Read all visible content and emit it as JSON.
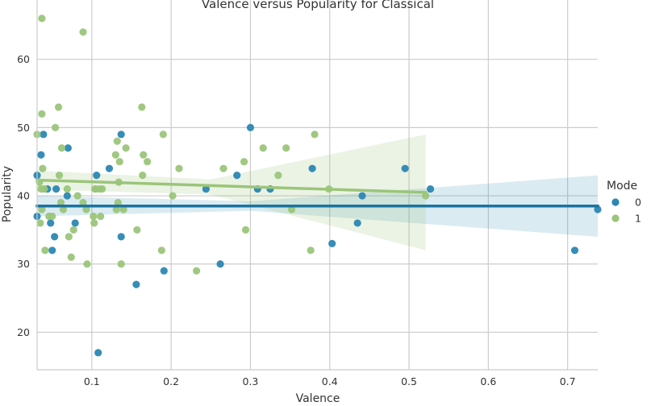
{
  "chart_data": {
    "type": "scatter",
    "title": "Valence versus Popularity for Classical",
    "xlabel": "Valence",
    "ylabel": "Popularity",
    "xlim": [
      0.031,
      0.738
    ],
    "ylim": [
      14.5,
      68.7
    ],
    "xticks": [
      "0.1",
      "0.2",
      "0.3",
      "0.4",
      "0.5",
      "0.6",
      "0.7"
    ],
    "yticks": [
      "20",
      "30",
      "40",
      "50",
      "60"
    ],
    "xtick_values": [
      0.1,
      0.2,
      0.3,
      0.4,
      0.5,
      0.6,
      0.7
    ],
    "ytick_values": [
      20,
      30,
      40,
      50,
      60
    ],
    "grid": true,
    "legend": {
      "title": "Mode",
      "placement": "right"
    },
    "series": [
      {
        "name": "0",
        "color": "#2b87b3",
        "points": [
          [
            0.031,
            43
          ],
          [
            0.031,
            37
          ],
          [
            0.036,
            46
          ],
          [
            0.039,
            49
          ],
          [
            0.044,
            41
          ],
          [
            0.048,
            36
          ],
          [
            0.05,
            32
          ],
          [
            0.053,
            34
          ],
          [
            0.055,
            41
          ],
          [
            0.069,
            40
          ],
          [
            0.07,
            47
          ],
          [
            0.079,
            36
          ],
          [
            0.106,
            43
          ],
          [
            0.108,
            17
          ],
          [
            0.122,
            44
          ],
          [
            0.137,
            49
          ],
          [
            0.137,
            34
          ],
          [
            0.156,
            27
          ],
          [
            0.191,
            29
          ],
          [
            0.244,
            41
          ],
          [
            0.262,
            30
          ],
          [
            0.283,
            43
          ],
          [
            0.3,
            50
          ],
          [
            0.309,
            41
          ],
          [
            0.325,
            41
          ],
          [
            0.378,
            44
          ],
          [
            0.403,
            33
          ],
          [
            0.435,
            36
          ],
          [
            0.441,
            40
          ],
          [
            0.495,
            44
          ],
          [
            0.527,
            41
          ],
          [
            0.709,
            32
          ],
          [
            0.738,
            38
          ]
        ],
        "fit": {
          "x": [
            0.031,
            0.738
          ],
          "y": [
            38.5,
            38.5
          ]
        },
        "ci": {
          "x": [
            0.031,
            0.3,
            0.738
          ],
          "lower": [
            37.0,
            37.8,
            34.0
          ],
          "upper": [
            40.0,
            39.2,
            43.0
          ]
        }
      },
      {
        "name": "1",
        "color": "#9bc57a",
        "points": [
          [
            0.031,
            49
          ],
          [
            0.034,
            42
          ],
          [
            0.035,
            36
          ],
          [
            0.036,
            41
          ],
          [
            0.037,
            38
          ],
          [
            0.037,
            66
          ],
          [
            0.037,
            52
          ],
          [
            0.038,
            44
          ],
          [
            0.04,
            41
          ],
          [
            0.041,
            32
          ],
          [
            0.046,
            37
          ],
          [
            0.05,
            37
          ],
          [
            0.054,
            50
          ],
          [
            0.058,
            53
          ],
          [
            0.059,
            43
          ],
          [
            0.061,
            39
          ],
          [
            0.062,
            47
          ],
          [
            0.064,
            38
          ],
          [
            0.069,
            41
          ],
          [
            0.071,
            34
          ],
          [
            0.074,
            31
          ],
          [
            0.077,
            35
          ],
          [
            0.082,
            40
          ],
          [
            0.089,
            64
          ],
          [
            0.089,
            39
          ],
          [
            0.093,
            38
          ],
          [
            0.094,
            30
          ],
          [
            0.102,
            37
          ],
          [
            0.103,
            36
          ],
          [
            0.104,
            41
          ],
          [
            0.105,
            41
          ],
          [
            0.11,
            41
          ],
          [
            0.111,
            37
          ],
          [
            0.113,
            41
          ],
          [
            0.13,
            46
          ],
          [
            0.131,
            38
          ],
          [
            0.132,
            48
          ],
          [
            0.133,
            39
          ],
          [
            0.134,
            42
          ],
          [
            0.135,
            45
          ],
          [
            0.137,
            30
          ],
          [
            0.14,
            38
          ],
          [
            0.143,
            47
          ],
          [
            0.157,
            35
          ],
          [
            0.163,
            53
          ],
          [
            0.164,
            43
          ],
          [
            0.165,
            46
          ],
          [
            0.17,
            45
          ],
          [
            0.188,
            32
          ],
          [
            0.19,
            49
          ],
          [
            0.202,
            40
          ],
          [
            0.21,
            44
          ],
          [
            0.232,
            29
          ],
          [
            0.266,
            44
          ],
          [
            0.292,
            45
          ],
          [
            0.294,
            35
          ],
          [
            0.316,
            47
          ],
          [
            0.335,
            43
          ],
          [
            0.345,
            47
          ],
          [
            0.352,
            38
          ],
          [
            0.376,
            32
          ],
          [
            0.381,
            49
          ],
          [
            0.399,
            41
          ],
          [
            0.521,
            40
          ]
        ],
        "fit": {
          "x": [
            0.031,
            0.521
          ],
          "y": [
            42.3,
            40.5
          ]
        },
        "ci": {
          "x": [
            0.031,
            0.25,
            0.521
          ],
          "lower": [
            40.9,
            40.2,
            32.0
          ],
          "upper": [
            43.7,
            42.4,
            49.0
          ]
        }
      }
    ]
  }
}
